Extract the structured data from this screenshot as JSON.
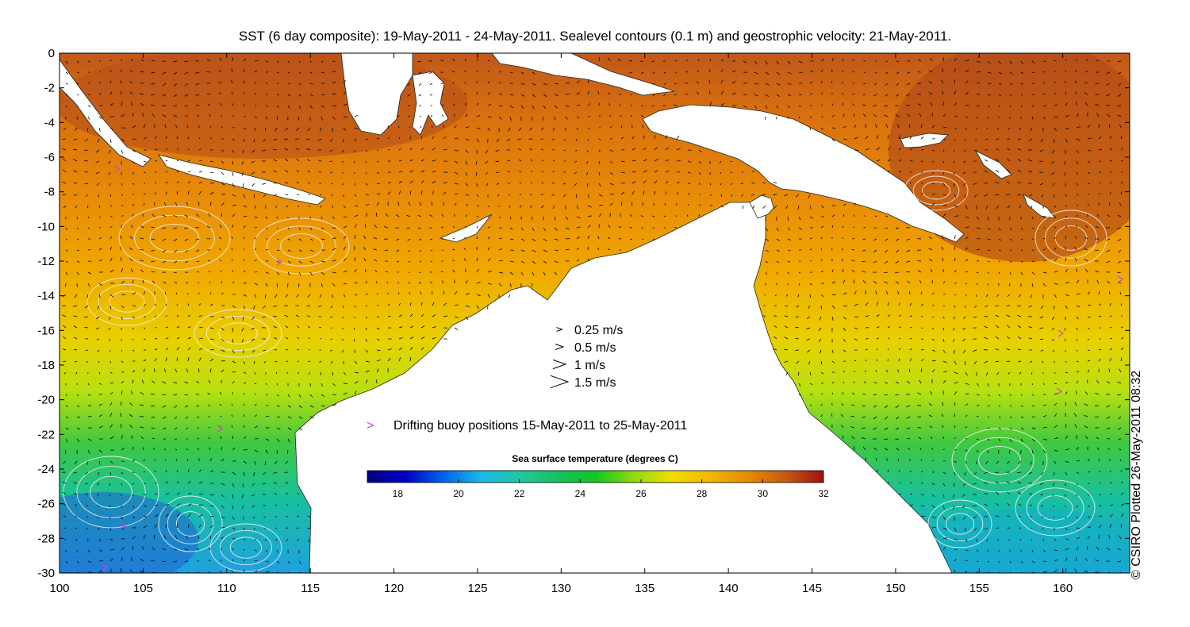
{
  "title": "SST (6 day composite): 19-May-2011 - 24-May-2011. Sealevel contours (0.1 m) and geostrophic velocity: 21-May-2011.",
  "credit": "© CSIRO Plotted 26-May-2011 08:32",
  "map": {
    "lon_range": [
      100,
      164
    ],
    "lat_range": [
      -30,
      0
    ],
    "x_ticks": [
      "100",
      "105",
      "110",
      "115",
      "120",
      "125",
      "130",
      "135",
      "140",
      "145",
      "150",
      "155",
      "160"
    ],
    "y_ticks": [
      "0",
      "-2",
      "-4",
      "-6",
      "-8",
      "-10",
      "-12",
      "-14",
      "-16",
      "-18",
      "-20",
      "-22",
      "-24",
      "-26",
      "-28",
      "-30"
    ],
    "land_color": "#ffffff",
    "ocean_palette": [
      "#000080",
      "#0050d0",
      "#1cb8e8",
      "#18c070",
      "#10c820",
      "#c8e000",
      "#f0c000",
      "#e88a00",
      "#c05a10",
      "#a01010"
    ]
  },
  "velocity_legend": {
    "items": [
      {
        "label": "0.25 m/s",
        "speed": 0.25
      },
      {
        "label": "0.5 m/s",
        "speed": 0.5
      },
      {
        "label": "1 m/s",
        "speed": 1
      },
      {
        "label": "1.5 m/s",
        "speed": 1.5
      }
    ]
  },
  "buoy_legend": {
    "symbol": ">",
    "label": "Drifting buoy positions 15-May-2011 to 25-May-2011",
    "color": "#d040d0"
  },
  "colorbar": {
    "title": "Sea surface temperature (degrees C)",
    "min": 17,
    "max": 32,
    "ticks": [
      "18",
      "20",
      "22",
      "24",
      "26",
      "28",
      "30",
      "32"
    ],
    "stops": [
      "#000080",
      "#0000c8",
      "#0064e8",
      "#1cb8e8",
      "#20c8a0",
      "#18c060",
      "#10c820",
      "#90d810",
      "#f0e000",
      "#f0b800",
      "#e88a00",
      "#c85a10",
      "#a01010"
    ]
  }
}
